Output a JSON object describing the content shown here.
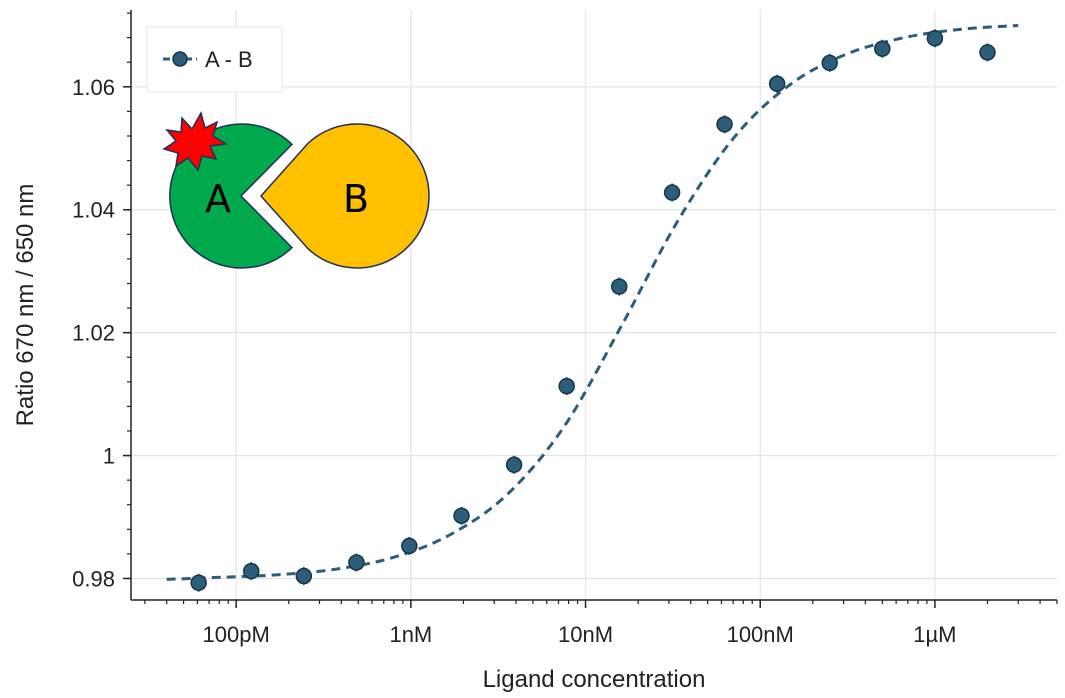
{
  "chart_data": {
    "type": "scatter",
    "xlabel": "Ligand concentration",
    "ylabel": "Ratio 670 nm / 650 nm",
    "x_scale": "log",
    "xlim_molar": [
      2.5e-11,
      5e-06
    ],
    "ylim": [
      0.9765,
      1.0725
    ],
    "x_ticks": [
      {
        "value": 1e-10,
        "label": "100pM"
      },
      {
        "value": 1e-09,
        "label": "1nM"
      },
      {
        "value": 1e-08,
        "label": "10nM"
      },
      {
        "value": 1e-07,
        "label": "100nM"
      },
      {
        "value": 1e-06,
        "label": "1µM"
      }
    ],
    "y_ticks": [
      {
        "value": 0.98,
        "label": "0.98"
      },
      {
        "value": 1.0,
        "label": "1"
      },
      {
        "value": 1.02,
        "label": "1.02"
      },
      {
        "value": 1.04,
        "label": "1.04"
      },
      {
        "value": 1.06,
        "label": "1.06"
      }
    ],
    "grid": true,
    "legend_position": "top-left",
    "series": [
      {
        "name": "A - B",
        "color": "#2c5e7a",
        "marker": "circle",
        "x": [
          6.1e-11,
          1.22e-10,
          2.44e-10,
          4.88e-10,
          9.8e-10,
          1.95e-09,
          3.9e-09,
          7.8e-09,
          1.56e-08,
          3.13e-08,
          6.25e-08,
          1.25e-07,
          2.5e-07,
          5e-07,
          1e-06,
          2e-06
        ],
        "y": [
          0.9793,
          0.9812,
          0.9804,
          0.9826,
          0.9853,
          0.9902,
          0.9985,
          1.0113,
          1.0275,
          1.0428,
          1.0539,
          1.0605,
          1.0639,
          1.0662,
          1.0679,
          1.0656
        ]
      }
    ],
    "fit": {
      "style": "dashed",
      "color": "#2c5e7a",
      "x_range": [
        4e-11,
        3e-06
      ],
      "y": [
        0.97985,
        0.98021,
        0.98063,
        0.98155,
        0.98345,
        0.98716,
        0.99368,
        1.00472,
        1.02092,
        1.03812,
        1.05182,
        1.06049,
        1.06541,
        1.06802,
        1.06937,
        1.06998
      ]
    }
  },
  "illustration": {
    "label_a": "A",
    "label_b": "B",
    "color_a": "#00aa4c",
    "color_b": "#ffc000",
    "color_burst": "#ff0000"
  }
}
